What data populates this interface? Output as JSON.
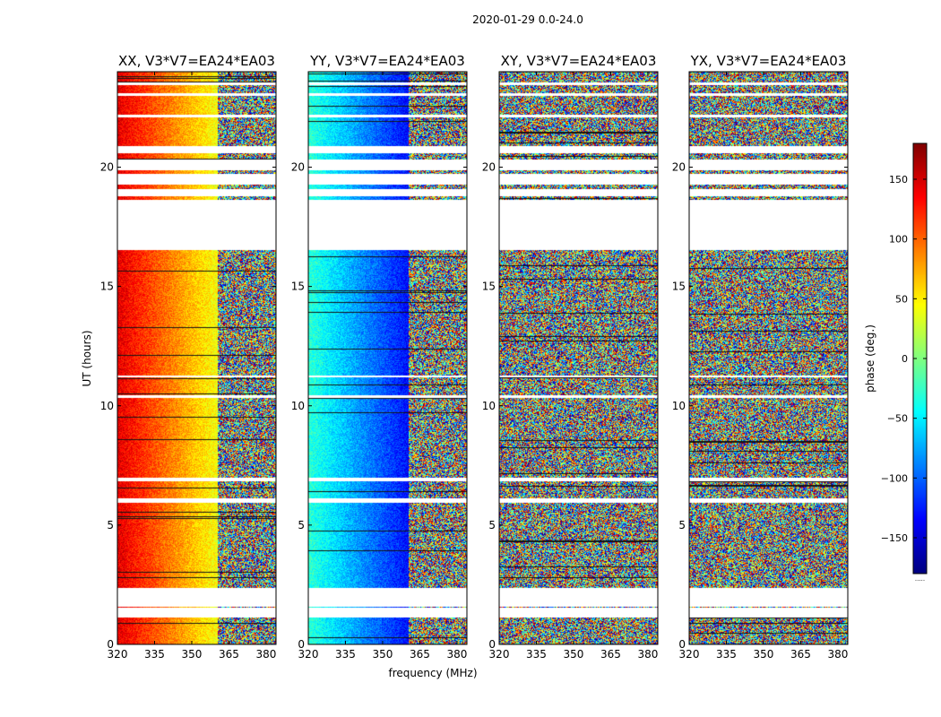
{
  "chart_data": {
    "type": "heatmap",
    "suptitle": "2020-01-29 0.0-24.0",
    "xlabel": "frequency (MHz)",
    "ylabel": "UT (hours)",
    "xlim": [
      320,
      384
    ],
    "ylim": [
      0,
      24
    ],
    "xticks": [
      320,
      335,
      350,
      365,
      380
    ],
    "yticks": [
      0,
      5,
      10,
      15,
      20
    ],
    "panels": [
      {
        "name": "XX",
        "title": "XX, V3*V7=EA24*EA03",
        "pattern": "smooth-red-to-yellow"
      },
      {
        "name": "YY",
        "title": "YY, V3*V7=EA24*EA03",
        "pattern": "smooth-cyan-to-blue"
      },
      {
        "name": "XY",
        "title": "XY, V3*V7=EA24*EA03",
        "pattern": "noise"
      },
      {
        "name": "YX",
        "title": "YX, V3*V7=EA24*EA03",
        "pattern": "noise"
      }
    ],
    "flagged_rows_hours": [
      [
        1.15,
        1.55
      ],
      [
        1.6,
        2.4
      ],
      [
        5.95,
        6.15
      ],
      [
        6.85,
        7.0
      ],
      [
        10.35,
        10.45
      ],
      [
        11.2,
        11.3
      ],
      [
        16.55,
        18.65
      ],
      [
        18.8,
        19.1
      ],
      [
        19.3,
        19.75
      ],
      [
        19.9,
        20.35
      ],
      [
        20.6,
        20.9
      ],
      [
        22.1,
        22.2
      ],
      [
        23.0,
        23.1
      ],
      [
        23.45,
        23.55
      ]
    ],
    "colorbar": {
      "label": "phase (deg.)",
      "range": [
        -180,
        180
      ],
      "ticks": [
        -150,
        -100,
        -50,
        0,
        50,
        100,
        150
      ],
      "tick_labels": [
        "−150",
        "−100",
        "−50",
        "0",
        "50",
        "100",
        "150"
      ],
      "footer_text": "....."
    }
  }
}
